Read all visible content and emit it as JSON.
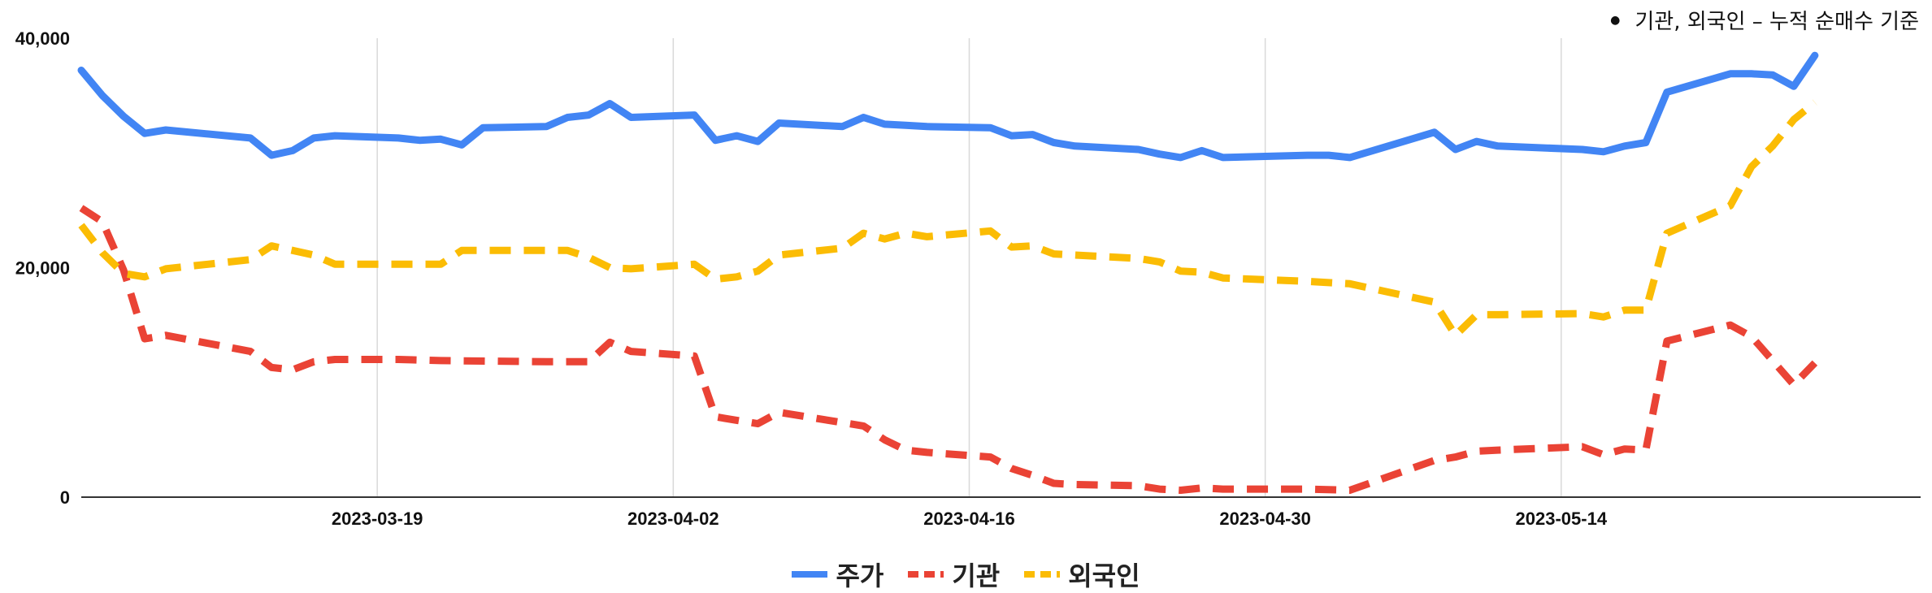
{
  "note": {
    "text": "기관, 외국인 – 누적 순매수 기준"
  },
  "chart_data": {
    "type": "line",
    "title": "",
    "xlabel": "",
    "ylabel": "",
    "ylim": [
      0,
      40000
    ],
    "y_ticks": [
      0,
      20000,
      40000
    ],
    "y_tick_labels": [
      "0",
      "20,000",
      "40,000"
    ],
    "x_range": [
      "2023-03-05",
      "2023-05-31"
    ],
    "x_ticks": [
      "2023-03-19",
      "2023-04-02",
      "2023-04-16",
      "2023-04-30",
      "2023-05-14"
    ],
    "grid": "vertical",
    "legend_position": "bottom",
    "series": [
      {
        "name": "주가",
        "color": "#4285F4",
        "dash": "solid",
        "points": [
          [
            "2023-03-05",
            37200
          ],
          [
            "2023-03-06",
            35000
          ],
          [
            "2023-03-07",
            33200
          ],
          [
            "2023-03-08",
            31700
          ],
          [
            "2023-03-09",
            32000
          ],
          [
            "2023-03-13",
            31300
          ],
          [
            "2023-03-14",
            29800
          ],
          [
            "2023-03-15",
            30200
          ],
          [
            "2023-03-16",
            31300
          ],
          [
            "2023-03-17",
            31500
          ],
          [
            "2023-03-20",
            31300
          ],
          [
            "2023-03-21",
            31100
          ],
          [
            "2023-03-22",
            31200
          ],
          [
            "2023-03-23",
            30700
          ],
          [
            "2023-03-24",
            32200
          ],
          [
            "2023-03-27",
            32300
          ],
          [
            "2023-03-28",
            33100
          ],
          [
            "2023-03-29",
            33300
          ],
          [
            "2023-03-30",
            34300
          ],
          [
            "2023-03-31",
            33100
          ],
          [
            "2023-04-03",
            33300
          ],
          [
            "2023-04-04",
            31100
          ],
          [
            "2023-04-05",
            31500
          ],
          [
            "2023-04-06",
            31000
          ],
          [
            "2023-04-07",
            32600
          ],
          [
            "2023-04-10",
            32300
          ],
          [
            "2023-04-11",
            33100
          ],
          [
            "2023-04-12",
            32500
          ],
          [
            "2023-04-13",
            32400
          ],
          [
            "2023-04-14",
            32300
          ],
          [
            "2023-04-17",
            32200
          ],
          [
            "2023-04-18",
            31500
          ],
          [
            "2023-04-19",
            31600
          ],
          [
            "2023-04-20",
            30900
          ],
          [
            "2023-04-21",
            30600
          ],
          [
            "2023-04-24",
            30300
          ],
          [
            "2023-04-25",
            29900
          ],
          [
            "2023-04-26",
            29600
          ],
          [
            "2023-04-27",
            30200
          ],
          [
            "2023-04-28",
            29600
          ],
          [
            "2023-05-02",
            29800
          ],
          [
            "2023-05-03",
            29800
          ],
          [
            "2023-05-04",
            29600
          ],
          [
            "2023-05-08",
            31800
          ],
          [
            "2023-05-09",
            30300
          ],
          [
            "2023-05-10",
            31000
          ],
          [
            "2023-05-11",
            30600
          ],
          [
            "2023-05-15",
            30300
          ],
          [
            "2023-05-16",
            30100
          ],
          [
            "2023-05-17",
            30600
          ],
          [
            "2023-05-18",
            30900
          ],
          [
            "2023-05-19",
            35300
          ],
          [
            "2023-05-22",
            36900
          ],
          [
            "2023-05-23",
            36900
          ],
          [
            "2023-05-24",
            36800
          ],
          [
            "2023-05-25",
            35800
          ],
          [
            "2023-05-26",
            38500
          ]
        ]
      },
      {
        "name": "기관",
        "color": "#EA4335",
        "dash": "dashed",
        "points": [
          [
            "2023-03-05",
            25200
          ],
          [
            "2023-03-06",
            24000
          ],
          [
            "2023-03-07",
            19800
          ],
          [
            "2023-03-08",
            13800
          ],
          [
            "2023-03-09",
            14100
          ],
          [
            "2023-03-13",
            12700
          ],
          [
            "2023-03-14",
            11300
          ],
          [
            "2023-03-15",
            11100
          ],
          [
            "2023-03-16",
            11800
          ],
          [
            "2023-03-17",
            12000
          ],
          [
            "2023-03-20",
            12000
          ],
          [
            "2023-03-22",
            11900
          ],
          [
            "2023-03-27",
            11800
          ],
          [
            "2023-03-29",
            11800
          ],
          [
            "2023-03-30",
            13500
          ],
          [
            "2023-03-31",
            12700
          ],
          [
            "2023-04-03",
            12300
          ],
          [
            "2023-04-04",
            7000
          ],
          [
            "2023-04-05",
            6700
          ],
          [
            "2023-04-06",
            6400
          ],
          [
            "2023-04-07",
            7400
          ],
          [
            "2023-04-10",
            6500
          ],
          [
            "2023-04-11",
            6200
          ],
          [
            "2023-04-12",
            5000
          ],
          [
            "2023-04-13",
            4100
          ],
          [
            "2023-04-14",
            3900
          ],
          [
            "2023-04-17",
            3500
          ],
          [
            "2023-04-18",
            2500
          ],
          [
            "2023-04-19",
            1900
          ],
          [
            "2023-04-20",
            1200
          ],
          [
            "2023-04-21",
            1100
          ],
          [
            "2023-04-24",
            1000
          ],
          [
            "2023-04-25",
            700
          ],
          [
            "2023-04-26",
            600
          ],
          [
            "2023-04-27",
            800
          ],
          [
            "2023-04-28",
            700
          ],
          [
            "2023-05-02",
            700
          ],
          [
            "2023-05-04",
            600
          ],
          [
            "2023-05-08",
            3200
          ],
          [
            "2023-05-09",
            3500
          ],
          [
            "2023-05-10",
            4000
          ],
          [
            "2023-05-11",
            4100
          ],
          [
            "2023-05-15",
            4400
          ],
          [
            "2023-05-16",
            3700
          ],
          [
            "2023-05-17",
            4200
          ],
          [
            "2023-05-18",
            4100
          ],
          [
            "2023-05-19",
            13600
          ],
          [
            "2023-05-22",
            15000
          ],
          [
            "2023-05-23",
            14000
          ],
          [
            "2023-05-25",
            9800
          ],
          [
            "2023-05-26",
            11700
          ]
        ]
      },
      {
        "name": "외국인",
        "color": "#FBBC04",
        "dash": "dashed",
        "points": [
          [
            "2023-03-05",
            23700
          ],
          [
            "2023-03-06",
            21300
          ],
          [
            "2023-03-07",
            19500
          ],
          [
            "2023-03-08",
            19200
          ],
          [
            "2023-03-09",
            19900
          ],
          [
            "2023-03-13",
            20700
          ],
          [
            "2023-03-14",
            21900
          ],
          [
            "2023-03-15",
            21500
          ],
          [
            "2023-03-16",
            21100
          ],
          [
            "2023-03-17",
            20300
          ],
          [
            "2023-03-20",
            20300
          ],
          [
            "2023-03-22",
            20300
          ],
          [
            "2023-03-23",
            21500
          ],
          [
            "2023-03-27",
            21500
          ],
          [
            "2023-03-28",
            21500
          ],
          [
            "2023-03-29",
            20900
          ],
          [
            "2023-03-30",
            20000
          ],
          [
            "2023-03-31",
            19900
          ],
          [
            "2023-04-03",
            20300
          ],
          [
            "2023-04-04",
            19000
          ],
          [
            "2023-04-05",
            19200
          ],
          [
            "2023-04-06",
            19700
          ],
          [
            "2023-04-07",
            21100
          ],
          [
            "2023-04-10",
            21700
          ],
          [
            "2023-04-11",
            23000
          ],
          [
            "2023-04-12",
            22500
          ],
          [
            "2023-04-13",
            23000
          ],
          [
            "2023-04-14",
            22700
          ],
          [
            "2023-04-17",
            23200
          ],
          [
            "2023-04-18",
            21800
          ],
          [
            "2023-04-19",
            21900
          ],
          [
            "2023-04-20",
            21200
          ],
          [
            "2023-04-24",
            20800
          ],
          [
            "2023-04-25",
            20500
          ],
          [
            "2023-04-26",
            19700
          ],
          [
            "2023-04-27",
            19600
          ],
          [
            "2023-04-28",
            19100
          ],
          [
            "2023-05-02",
            18800
          ],
          [
            "2023-05-04",
            18600
          ],
          [
            "2023-05-08",
            17000
          ],
          [
            "2023-05-09",
            14100
          ],
          [
            "2023-05-10",
            15900
          ],
          [
            "2023-05-11",
            15900
          ],
          [
            "2023-05-15",
            16000
          ],
          [
            "2023-05-16",
            15700
          ],
          [
            "2023-05-17",
            16300
          ],
          [
            "2023-05-18",
            16300
          ],
          [
            "2023-05-19",
            23000
          ],
          [
            "2023-05-22",
            25400
          ],
          [
            "2023-05-23",
            28800
          ],
          [
            "2023-05-24",
            30600
          ],
          [
            "2023-05-25",
            32900
          ],
          [
            "2023-05-26",
            34400
          ]
        ]
      }
    ]
  }
}
